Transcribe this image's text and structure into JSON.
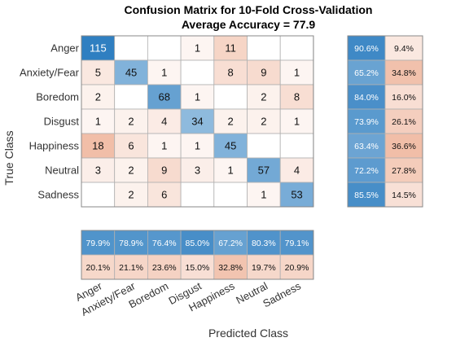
{
  "chart_data": {
    "type": "heatmap",
    "title": "Confusion Matrix for 10-Fold Cross-Validation",
    "subtitle": "Average Accuracy = 77.9",
    "xlabel": "Predicted Class",
    "ylabel": "True Class",
    "classes": [
      "Anger",
      "Anxiety/Fear",
      "Boredom",
      "Disgust",
      "Happiness",
      "Neutral",
      "Sadness"
    ],
    "matrix": [
      [
        115,
        0,
        0,
        1,
        11,
        0,
        0
      ],
      [
        5,
        45,
        1,
        0,
        8,
        9,
        1
      ],
      [
        2,
        0,
        68,
        1,
        0,
        2,
        8
      ],
      [
        1,
        2,
        4,
        34,
        2,
        2,
        1
      ],
      [
        18,
        6,
        1,
        1,
        45,
        0,
        0
      ],
      [
        3,
        2,
        9,
        3,
        1,
        57,
        4
      ],
      [
        0,
        2,
        6,
        0,
        0,
        1,
        53
      ]
    ],
    "row_summary": {
      "correct": [
        "90.6%",
        "65.2%",
        "84.0%",
        "73.9%",
        "63.4%",
        "72.2%",
        "85.5%"
      ],
      "incorrect": [
        "9.4%",
        "34.8%",
        "16.0%",
        "26.1%",
        "36.6%",
        "27.8%",
        "14.5%"
      ]
    },
    "column_summary": {
      "correct": [
        "79.9%",
        "78.9%",
        "76.4%",
        "85.0%",
        "67.2%",
        "80.3%",
        "79.1%"
      ],
      "incorrect": [
        "20.1%",
        "21.1%",
        "23.6%",
        "15.0%",
        "32.8%",
        "19.7%",
        "20.9%"
      ]
    },
    "colors": {
      "diag_strong": "#2f7fc1",
      "diag_light": "#aacbe6",
      "off_diag": "#d9541a",
      "summary_correct": "#2f7fc1",
      "summary_incorrect": "#d9541a"
    }
  }
}
